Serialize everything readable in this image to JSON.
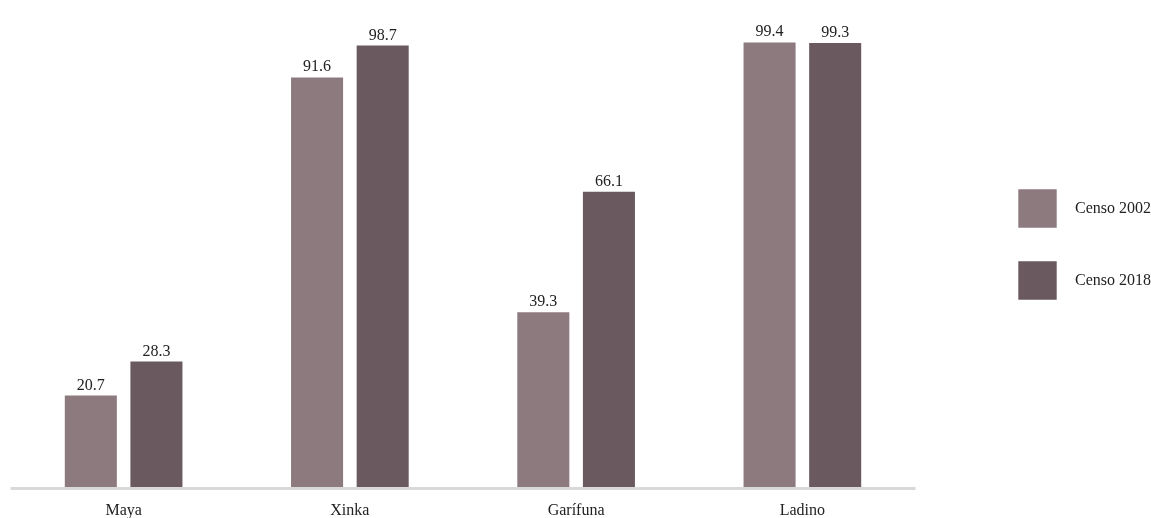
{
  "chart_data": {
    "type": "bar",
    "categories": [
      "Maya",
      "Xinka",
      "Garífuna",
      "Ladino"
    ],
    "series": [
      {
        "name": "Censo 2002",
        "color": "#8c7a7f",
        "values": [
          20.7,
          91.6,
          39.3,
          99.4
        ]
      },
      {
        "name": "Censo 2018",
        "color": "#6b5960",
        "values": [
          28.3,
          98.7,
          66.1,
          99.3
        ]
      }
    ],
    "data_labels": true,
    "legend": "right",
    "grid": false
  }
}
